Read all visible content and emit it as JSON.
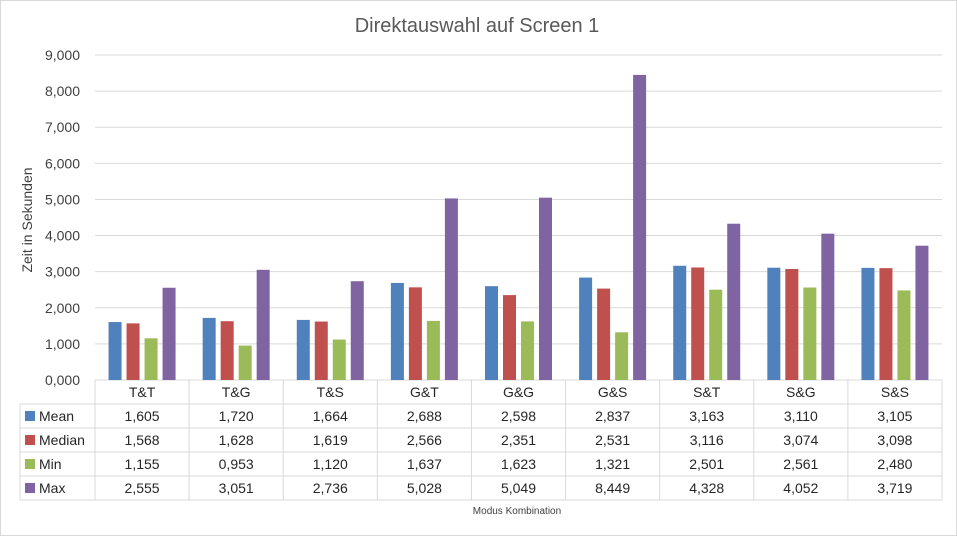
{
  "chart_data": {
    "type": "bar",
    "title": "Direktauswahl auf Screen 1",
    "ylabel": "Zeit in Sekunden",
    "xlabel": "Modus Kombination",
    "ylim": [
      0,
      9
    ],
    "yticks": [
      "0,000",
      "1,000",
      "2,000",
      "3,000",
      "4,000",
      "5,000",
      "6,000",
      "7,000",
      "8,000",
      "9,000"
    ],
    "categories": [
      "T&T",
      "T&G",
      "T&S",
      "G&T",
      "G&G",
      "G&S",
      "S&T",
      "S&G",
      "S&S"
    ],
    "grid": true,
    "legend": "data-table",
    "series": [
      {
        "name": "Mean",
        "color": "#4f81bd",
        "values": [
          1.605,
          1.72,
          1.664,
          2.688,
          2.598,
          2.837,
          3.163,
          3.11,
          3.105
        ],
        "labels": [
          "1,605",
          "1,720",
          "1,664",
          "2,688",
          "2,598",
          "2,837",
          "3,163",
          "3,110",
          "3,105"
        ]
      },
      {
        "name": "Median",
        "color": "#c0504d",
        "values": [
          1.568,
          1.628,
          1.619,
          2.566,
          2.351,
          2.531,
          3.116,
          3.074,
          3.098
        ],
        "labels": [
          "1,568",
          "1,628",
          "1,619",
          "2,566",
          "2,351",
          "2,531",
          "3,116",
          "3,074",
          "3,098"
        ]
      },
      {
        "name": "Min",
        "color": "#9bbb59",
        "values": [
          1.155,
          0.953,
          1.12,
          1.637,
          1.623,
          1.321,
          2.501,
          2.561,
          2.48
        ],
        "labels": [
          "1,155",
          "0,953",
          "1,120",
          "1,637",
          "1,623",
          "1,321",
          "2,501",
          "2,561",
          "2,480"
        ]
      },
      {
        "name": "Max",
        "color": "#8064a2",
        "values": [
          2.555,
          3.051,
          2.736,
          5.028,
          5.049,
          8.449,
          4.328,
          4.052,
          3.719
        ],
        "labels": [
          "2,555",
          "3,051",
          "2,736",
          "5,028",
          "5,049",
          "8,449",
          "4,328",
          "4,052",
          "3,719"
        ]
      }
    ]
  }
}
